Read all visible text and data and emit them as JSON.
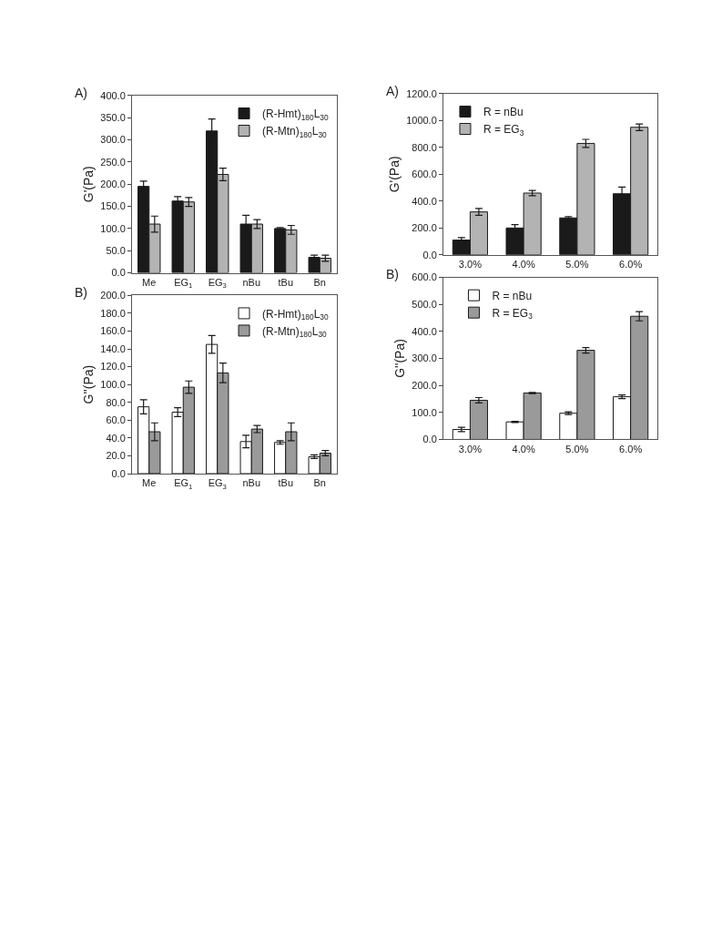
{
  "chart_data": [
    {
      "type": "bar",
      "title": "A)",
      "ylabel": "G'(Pa)",
      "categories": [
        "Me",
        "EG$_{1}$",
        "EG$_{3}$",
        "nBu",
        "tBu",
        "Bn"
      ],
      "ylim": [
        0,
        400
      ],
      "yticks": [
        {
          "value": 0,
          "label": "0.0"
        },
        {
          "value": 50,
          "label": "50.0"
        },
        {
          "value": 100,
          "label": "100.0"
        },
        {
          "value": 150,
          "label": "150.0"
        },
        {
          "value": 200,
          "label": "200.0"
        },
        {
          "value": 250,
          "label": "250.0"
        },
        {
          "value": 300,
          "label": "300.0"
        },
        {
          "value": 350,
          "label": "350.0"
        },
        {
          "value": 400,
          "label": "400.0"
        }
      ],
      "legend": "top right",
      "series": [
        {
          "name": "(R-Hmt)$_{180}$L$_{30}$",
          "color": "#1a1a1a",
          "values": [
            195,
            162,
            320,
            110,
            100,
            35
          ],
          "errors": [
            12,
            10,
            27,
            20,
            2,
            5
          ]
        },
        {
          "name": "(R-Mtn)$_{180}$L$_{30}$",
          "color": "#b3b3b3",
          "values": [
            110,
            160,
            222,
            110,
            97,
            33
          ],
          "errors": [
            18,
            10,
            14,
            10,
            10,
            7
          ]
        }
      ]
    },
    {
      "type": "bar",
      "title": "B)",
      "ylabel": "G''(Pa)",
      "categories": [
        "Me",
        "EG$_{1}$",
        "EG$_{3}$",
        "nBu",
        "tBu",
        "Bn"
      ],
      "ylim": [
        0,
        200
      ],
      "yticks": [
        {
          "value": 0,
          "label": "0.0"
        },
        {
          "value": 20,
          "label": "20.0"
        },
        {
          "value": 40,
          "label": "40.0"
        },
        {
          "value": 60,
          "label": "60.0"
        },
        {
          "value": 80,
          "label": "80.0"
        },
        {
          "value": 100,
          "label": "100.0"
        },
        {
          "value": 120,
          "label": "120.0"
        },
        {
          "value": 140,
          "label": "140.0"
        },
        {
          "value": 160,
          "label": "160.0"
        },
        {
          "value": 180,
          "label": "180.0"
        },
        {
          "value": 200,
          "label": "200.0"
        }
      ],
      "legend": "top right",
      "series": [
        {
          "name": "(R-Hmt)$_{180}$L$_{30}$",
          "color": "#ffffff",
          "values": [
            75,
            69,
            145,
            36,
            35,
            19
          ],
          "errors": [
            8,
            5,
            10,
            7,
            2,
            2
          ]
        },
        {
          "name": "(R-Mtn)$_{180}$L$_{30}$",
          "color": "#9a9a9a",
          "values": [
            47,
            97,
            113,
            50,
            47,
            23
          ],
          "errors": [
            10,
            7,
            11,
            4,
            10,
            3
          ]
        }
      ]
    },
    {
      "type": "bar",
      "title": "A)",
      "ylabel": "G'(Pa)",
      "categories": [
        "3.0%",
        "4.0%",
        "5.0%",
        "6.0%"
      ],
      "ylim": [
        0,
        1200
      ],
      "yticks": [
        {
          "value": 0,
          "label": "0.0"
        },
        {
          "value": 200,
          "label": "200.0"
        },
        {
          "value": 400,
          "label": "400.0"
        },
        {
          "value": 600,
          "label": "600.0"
        },
        {
          "value": 800,
          "label": "800.0"
        },
        {
          "value": 1000,
          "label": "1000.0"
        },
        {
          "value": 1200,
          "label": "1200.0"
        }
      ],
      "legend": "top left",
      "series": [
        {
          "name": "R = nBu",
          "color": "#1a1a1a",
          "values": [
            110,
            200,
            275,
            455
          ],
          "errors": [
            18,
            25,
            10,
            50
          ]
        },
        {
          "name": "R = EG$_{3}$",
          "color": "#b3b3b3",
          "values": [
            320,
            460,
            830,
            950
          ],
          "errors": [
            25,
            20,
            30,
            25
          ]
        }
      ]
    },
    {
      "type": "bar",
      "title": "B)",
      "ylabel": "G''(Pa)",
      "categories": [
        "3.0%",
        "4.0%",
        "5.0%",
        "6.0%"
      ],
      "ylim": [
        0,
        600
      ],
      "yticks": [
        {
          "value": 0,
          "label": "0.0"
        },
        {
          "value": 100,
          "label": "100.0"
        },
        {
          "value": 200,
          "label": "200.0"
        },
        {
          "value": 300,
          "label": "300.0"
        },
        {
          "value": 400,
          "label": "400.0"
        },
        {
          "value": 500,
          "label": "500.0"
        },
        {
          "value": 600,
          "label": "600.0"
        }
      ],
      "legend": "top left",
      "series": [
        {
          "name": "R = nBu",
          "color": "#ffffff",
          "values": [
            37,
            65,
            97,
            158
          ],
          "errors": [
            8,
            2,
            5,
            7
          ]
        },
        {
          "name": "R = EG$_{3}$",
          "color": "#9a9a9a",
          "values": [
            145,
            172,
            330,
            456
          ],
          "errors": [
            10,
            2,
            10,
            17
          ]
        }
      ]
    }
  ]
}
